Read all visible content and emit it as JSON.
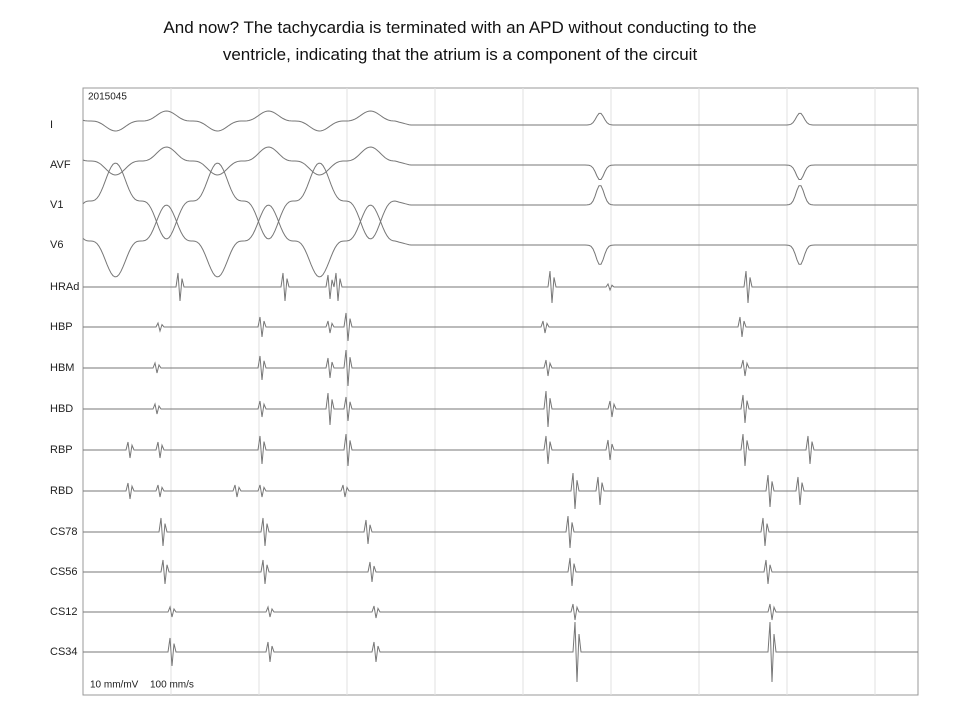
{
  "title": {
    "line1": "And now? The tachycardia is terminated with  an APD without conducting to the",
    "line2": "ventricle, indicating that the atrium is a component of the circuit"
  },
  "tracing": {
    "id": "2015045",
    "channels": [
      "I",
      "AVF",
      "V1",
      "V6",
      "HRAd",
      "HBP",
      "HBM",
      "HBD",
      "RBP",
      "RBD",
      "CS78",
      "CS56",
      "CS12",
      "CS34"
    ],
    "gain": "10 mm/mV",
    "speed": "100 mm/s"
  }
}
